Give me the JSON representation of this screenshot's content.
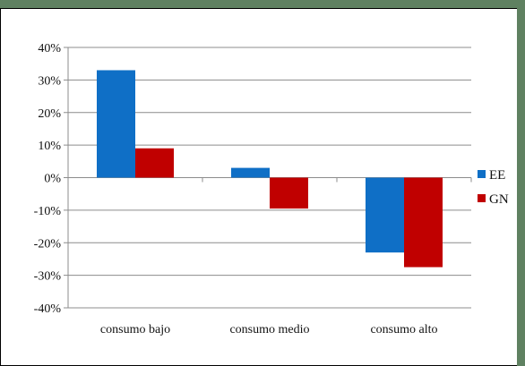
{
  "chart_data": {
    "type": "bar",
    "title": "",
    "xlabel": "",
    "ylabel": "",
    "categories": [
      "consumo bajo",
      "consumo medio",
      "consumo alto"
    ],
    "series": [
      {
        "name": "EE",
        "color": "#0f6fc6",
        "values": [
          33,
          3,
          -23
        ]
      },
      {
        "name": "GN",
        "color": "#c00000",
        "values": [
          9,
          -9.5,
          -27.5
        ]
      }
    ],
    "ylim": [
      -40,
      40
    ],
    "yticks": [
      40,
      30,
      20,
      10,
      0,
      -10,
      -20,
      -30,
      -40
    ],
    "ytick_labels": [
      "40%",
      "30%",
      "20%",
      "10%",
      "0%",
      "-10%",
      "-20%",
      "-30%",
      "-40%"
    ],
    "grid": true,
    "legend_position": "right"
  }
}
